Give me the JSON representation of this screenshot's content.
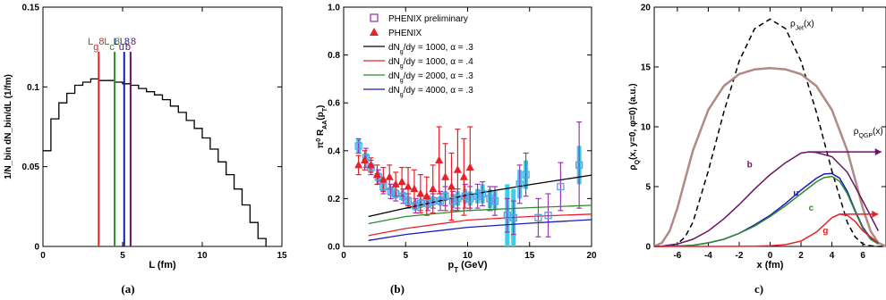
{
  "chart_data": [
    {
      "panel": "a",
      "type": "line",
      "caption": "(a)",
      "xlabel": "L (fm)",
      "ylabel": "1/N_bin dN_bin/dL (1/fm)",
      "xlim": [
        0,
        15
      ],
      "ylim": [
        0,
        0.15
      ],
      "xticks": [
        0,
        5,
        10,
        15
      ],
      "yticks": [
        0,
        0.05,
        0.1,
        0.15
      ],
      "ytick_labels": [
        "0",
        "0.05",
        "0.1",
        "0.15"
      ],
      "grid": false,
      "step_series": {
        "edges": [
          0,
          0.5,
          1.0,
          1.5,
          2.0,
          2.5,
          3.0,
          3.5,
          4.0,
          4.5,
          5.0,
          5.5,
          6.0,
          6.5,
          7.0,
          7.5,
          8.0,
          8.5,
          9.0,
          9.5,
          10.0,
          10.5,
          11.0,
          11.5,
          12.0,
          12.5,
          13.0,
          13.5,
          14.0
        ],
        "values": [
          0.06,
          0.08,
          0.09,
          0.096,
          0.101,
          0.103,
          0.105,
          0.104,
          0.104,
          0.103,
          0.102,
          0.101,
          0.099,
          0.097,
          0.095,
          0.092,
          0.088,
          0.084,
          0.079,
          0.074,
          0.068,
          0.061,
          0.053,
          0.045,
          0.036,
          0.026,
          0.015,
          0.005
        ]
      },
      "vlines": [
        {
          "label": "L",
          "sub": "g",
          "x": 3.5,
          "color": "#e8202a"
        },
        {
          "label": "L",
          "sub": "c",
          "x": 4.5,
          "color": "#2e8b2e"
        },
        {
          "label": "L",
          "sub": "u",
          "x": 5.1,
          "color": "#1a1ab8"
        },
        {
          "label": "L",
          "sub": "b",
          "x": 5.5,
          "color": "#6a1460"
        }
      ],
      "vline_top": 0.122
    },
    {
      "panel": "b",
      "type": "scatter",
      "caption": "(b)",
      "xlabel": "p_T (GeV)",
      "ylabel": "π0 R_AA(p_T)",
      "xlim": [
        0,
        20
      ],
      "ylim": [
        0,
        1.0
      ],
      "xticks": [
        0,
        5,
        10,
        15,
        20
      ],
      "yticks": [
        0,
        0.2,
        0.4,
        0.6,
        0.8,
        1.0
      ],
      "ytick_labels": [
        "0.0",
        "0.2",
        "0.4",
        "0.6",
        "0.8",
        "1.0"
      ],
      "grid": false,
      "legend_position": "top-center",
      "legend": [
        {
          "text": "PHENIX preliminary",
          "marker": "square",
          "color": "#9a38b8"
        },
        {
          "text": "PHENIX",
          "marker": "triangle",
          "color": "#e8202a"
        },
        {
          "pre": "dN",
          "sub": "g",
          "post": "/dy = 1000, α = .3",
          "color": "#000000"
        },
        {
          "pre": "dN",
          "sub": "g",
          "post": "/dy = 1000, α = .4",
          "color": "#e8202a"
        },
        {
          "pre": "dN",
          "sub": "g",
          "post": "/dy = 2000, α = .3",
          "color": "#2e8b2e"
        },
        {
          "pre": "dN",
          "sub": "g",
          "post": "/dy = 4000, α = .3",
          "color": "#1a1ab8"
        }
      ],
      "series": [
        {
          "name": "PHENIX preliminary",
          "marker": "square",
          "color": "#9a38b8",
          "box_color": "#5aa0e6",
          "band_color": "#38d0e8",
          "x": [
            1.2,
            1.8,
            2.2,
            2.8,
            3.2,
            3.8,
            4.2,
            4.8,
            5.2,
            5.8,
            6.2,
            6.8,
            7.2,
            7.8,
            8.2,
            8.8,
            9.2,
            9.8,
            10.2,
            10.8,
            11.2,
            11.8,
            12.2,
            13.2,
            13.7,
            14.2,
            14.7,
            15.7,
            16.5,
            17.5,
            19.0
          ],
          "y": [
            0.42,
            0.37,
            0.33,
            0.29,
            0.25,
            0.23,
            0.22,
            0.21,
            0.19,
            0.17,
            0.18,
            0.18,
            0.19,
            0.19,
            0.21,
            0.19,
            0.2,
            0.21,
            0.2,
            0.21,
            0.22,
            0.2,
            0.19,
            0.13,
            0.12,
            0.26,
            0.3,
            0.12,
            0.13,
            0.25,
            0.34
          ],
          "err": [
            0.03,
            0.04,
            0.03,
            0.03,
            0.03,
            0.03,
            0.03,
            0.03,
            0.03,
            0.03,
            0.03,
            0.03,
            0.03,
            0.04,
            0.04,
            0.04,
            0.04,
            0.05,
            0.05,
            0.05,
            0.05,
            0.05,
            0.06,
            0.07,
            0.07,
            0.08,
            0.09,
            0.08,
            0.09,
            0.1,
            0.18
          ],
          "band": [
            0.03,
            0.02,
            0.02,
            0.02,
            0.02,
            0.02,
            0.02,
            0.02,
            0.02,
            0.02,
            0.02,
            0.02,
            0.02,
            0.02,
            0.02,
            0.03,
            0.03,
            0.03,
            0.03,
            0.03,
            0.04,
            0.04,
            0.04,
            0.13,
            0.12,
            0.06,
            0.06,
            0.0,
            0.0,
            0.0,
            0.08
          ]
        },
        {
          "name": "PHENIX",
          "marker": "triangle",
          "color": "#e8202a",
          "x": [
            1.2,
            1.7,
            2.2,
            2.7,
            3.2,
            3.7,
            4.2,
            4.7,
            5.2,
            5.7,
            6.2,
            6.7,
            7.2,
            7.7,
            8.2,
            8.7,
            9.2,
            9.7,
            10.2
          ],
          "y": [
            0.34,
            0.36,
            0.34,
            0.3,
            0.28,
            0.29,
            0.26,
            0.27,
            0.25,
            0.24,
            0.22,
            0.21,
            0.24,
            0.36,
            0.29,
            0.25,
            0.32,
            0.29,
            0.33
          ],
          "err": [
            0.04,
            0.04,
            0.03,
            0.04,
            0.05,
            0.05,
            0.05,
            0.06,
            0.08,
            0.08,
            0.08,
            0.08,
            0.1,
            0.14,
            0.14,
            0.14,
            0.17,
            0.16,
            0.17
          ]
        },
        {
          "name": "dN_g/dy = 1000, α = .3",
          "type": "line",
          "color": "#000000",
          "x": [
            2,
            5,
            10,
            15,
            20
          ],
          "y": [
            0.125,
            0.16,
            0.215,
            0.258,
            0.298
          ]
        },
        {
          "name": "dN_g/dy = 1000, α = .4",
          "type": "line",
          "color": "#e8202a",
          "x": [
            2,
            5,
            10,
            15,
            20
          ],
          "y": [
            0.045,
            0.075,
            0.11,
            0.125,
            0.135
          ]
        },
        {
          "name": "dN_g/dy = 2000, α = .3",
          "type": "line",
          "color": "#2e8b2e",
          "x": [
            2,
            5,
            10,
            15,
            20
          ],
          "y": [
            0.095,
            0.125,
            0.15,
            0.162,
            0.172
          ]
        },
        {
          "name": "dN_g/dy = 4000, α = .3",
          "type": "line",
          "color": "#1a1ab8",
          "x": [
            2,
            5,
            10,
            15,
            20
          ],
          "y": [
            0.025,
            0.05,
            0.08,
            0.097,
            0.112
          ]
        }
      ]
    },
    {
      "panel": "c",
      "type": "line",
      "caption": "c)",
      "xlabel": "x (fm)",
      "ylabel": "ρ_Q(x, y=0, φ=0) (a.u.)",
      "xlim": [
        -7.5,
        7.5
      ],
      "ylim": [
        0,
        20
      ],
      "xticks": [
        -6,
        -4,
        -2,
        0,
        2,
        4,
        6
      ],
      "yticks": [
        0,
        5,
        10,
        15,
        20
      ],
      "ytick_labels": [
        "0",
        "5",
        "10",
        "15",
        "20"
      ],
      "grid": false,
      "series": [
        {
          "name": "ρ_Jet(x)",
          "label_pre": "ρ",
          "label_sub": "Jet",
          "label_post": "(x)",
          "label_at": [
            1.3,
            18.4
          ],
          "color": "#000000",
          "dash": true,
          "x": [
            -7.5,
            -6.5,
            -6.0,
            -5.5,
            -5.0,
            -4.0,
            -3.0,
            -2.0,
            -1.0,
            0.0,
            1.0,
            2.0,
            3.0,
            4.0,
            5.0,
            5.5,
            6.0,
            6.5,
            7.0,
            7.5
          ],
          "y": [
            0,
            0.05,
            0.2,
            0.8,
            2.0,
            6.3,
            11.2,
            15.5,
            18.2,
            19.0,
            18.2,
            15.5,
            11.2,
            6.3,
            2.0,
            0.8,
            0.2,
            0.05,
            0,
            0
          ]
        },
        {
          "name": "ρ_QGP(x)",
          "label_pre": "ρ",
          "label_sub": "QGP",
          "label_post": "(x)",
          "label_at": [
            5.4,
            9.4
          ],
          "color": "#b08a84",
          "width": 2.5,
          "x": [
            -7.5,
            -7.0,
            -6.5,
            -6.0,
            -5.5,
            -5.0,
            -4.0,
            -3.0,
            -2.0,
            -1.0,
            0.0,
            1.0,
            2.0,
            3.0,
            4.0,
            5.0,
            5.5,
            6.0,
            6.5,
            7.0,
            7.5
          ],
          "y": [
            0,
            0.3,
            1.3,
            3.2,
            5.6,
            8.0,
            11.4,
            13.4,
            14.4,
            14.8,
            14.9,
            14.8,
            14.4,
            13.4,
            11.4,
            8.0,
            5.6,
            3.2,
            1.3,
            0.3,
            0
          ]
        },
        {
          "name": "b",
          "label_at": [
            -1.5,
            6.6
          ],
          "color": "#6a1460",
          "x": [
            -7.5,
            -7.0,
            -6.0,
            -5.0,
            -4.0,
            -3.0,
            -2.0,
            -1.0,
            0.0,
            1.0,
            2.0,
            2.5,
            3.0,
            4.0,
            5.0,
            6.0,
            7.0
          ],
          "y": [
            0,
            0.03,
            0.2,
            0.6,
            1.3,
            2.3,
            3.5,
            4.8,
            6.0,
            7.0,
            7.8,
            7.9,
            7.85,
            7.5,
            6.2,
            3.8,
            1.3
          ],
          "arrow_to": [
            7.2,
            7.9
          ]
        },
        {
          "name": "u",
          "label_at": [
            1.5,
            4.2
          ],
          "color": "#1a1ab8",
          "x": [
            -7.5,
            -6.0,
            -5.0,
            -4.0,
            -3.0,
            -2.0,
            -1.0,
            0.0,
            1.0,
            2.0,
            3.0,
            3.5,
            4.0,
            4.5,
            5.0,
            5.5,
            6.0,
            6.5,
            7.0
          ],
          "y": [
            0,
            0.03,
            0.1,
            0.3,
            0.6,
            1.1,
            1.8,
            2.6,
            3.6,
            4.7,
            5.7,
            6.05,
            6.1,
            5.7,
            4.6,
            3.0,
            1.6,
            0.7,
            0.25
          ]
        },
        {
          "name": "c",
          "label_at": [
            2.5,
            3.0
          ],
          "color": "#2e8b2e",
          "x": [
            -7.5,
            -6.0,
            -5.0,
            -4.0,
            -3.0,
            -2.0,
            -1.0,
            0.0,
            1.0,
            2.0,
            3.0,
            3.5,
            4.0,
            4.5,
            5.0,
            5.5,
            6.0,
            6.5,
            7.0
          ],
          "y": [
            0,
            0.03,
            0.1,
            0.3,
            0.6,
            1.1,
            1.7,
            2.5,
            3.4,
            4.4,
            5.4,
            5.75,
            5.85,
            5.45,
            4.4,
            2.9,
            1.5,
            0.6,
            0.2
          ]
        },
        {
          "name": "g",
          "label_at": [
            3.4,
            1.1
          ],
          "color": "#e8202a",
          "x": [
            -7.5,
            -4.0,
            -2.0,
            -1.0,
            0.0,
            1.0,
            2.0,
            3.0,
            3.5,
            4.0,
            4.5,
            5.0,
            5.5,
            6.0,
            7.0
          ],
          "y": [
            0,
            0,
            0.01,
            0.02,
            0.05,
            0.15,
            0.45,
            1.2,
            1.8,
            2.4,
            2.7,
            2.6,
            2.1,
            1.3,
            0.3
          ],
          "arrow_to": [
            7.0,
            2.7
          ]
        }
      ]
    }
  ]
}
